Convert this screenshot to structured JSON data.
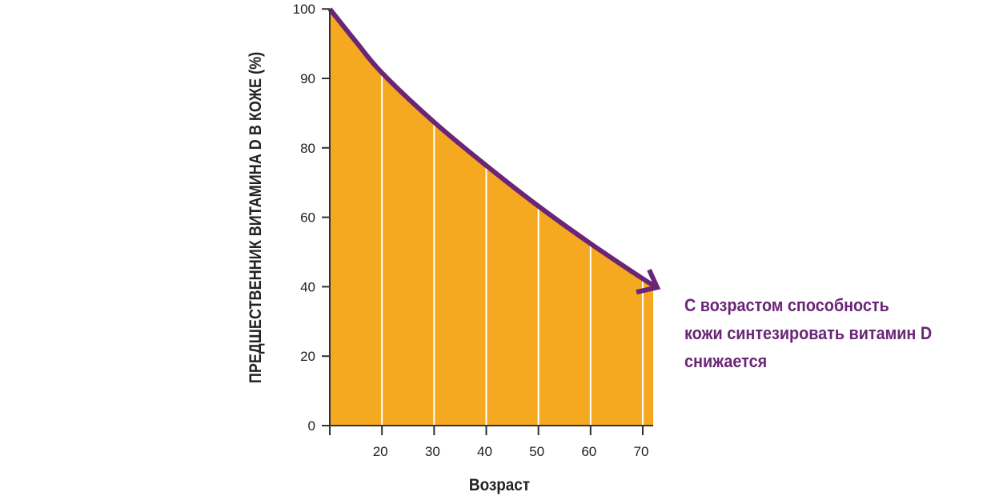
{
  "chart_data": {
    "type": "area",
    "title": "",
    "xlabel": "Возраст",
    "ylabel": "ПРЕДШЕСТВЕННИК ВИТАМИНА D В КОЖЕ (%)",
    "x_ticks": [
      20,
      30,
      40,
      50,
      60,
      70
    ],
    "y_ticks": [
      0,
      20,
      40,
      60,
      80,
      90,
      100
    ],
    "y_ticks_equally_spaced": true,
    "xlim": [
      10,
      72
    ],
    "x": [
      10,
      15,
      20,
      30,
      40,
      50,
      60,
      70,
      72
    ],
    "y": [
      100,
      95.3,
      90.8,
      83.7,
      74.9,
      63.2,
      52.4,
      42.3,
      40.5
    ],
    "vertical_gridlines_at": [
      20,
      30,
      40,
      50,
      60,
      70
    ],
    "grid": "vertical white lines",
    "fill_color": "#F4A920",
    "line_color": "#6A2577",
    "line_end": "arrow",
    "annotation": [
      "С возрастом способность",
      "кожи синтезировать витамин D",
      "снижается"
    ]
  }
}
